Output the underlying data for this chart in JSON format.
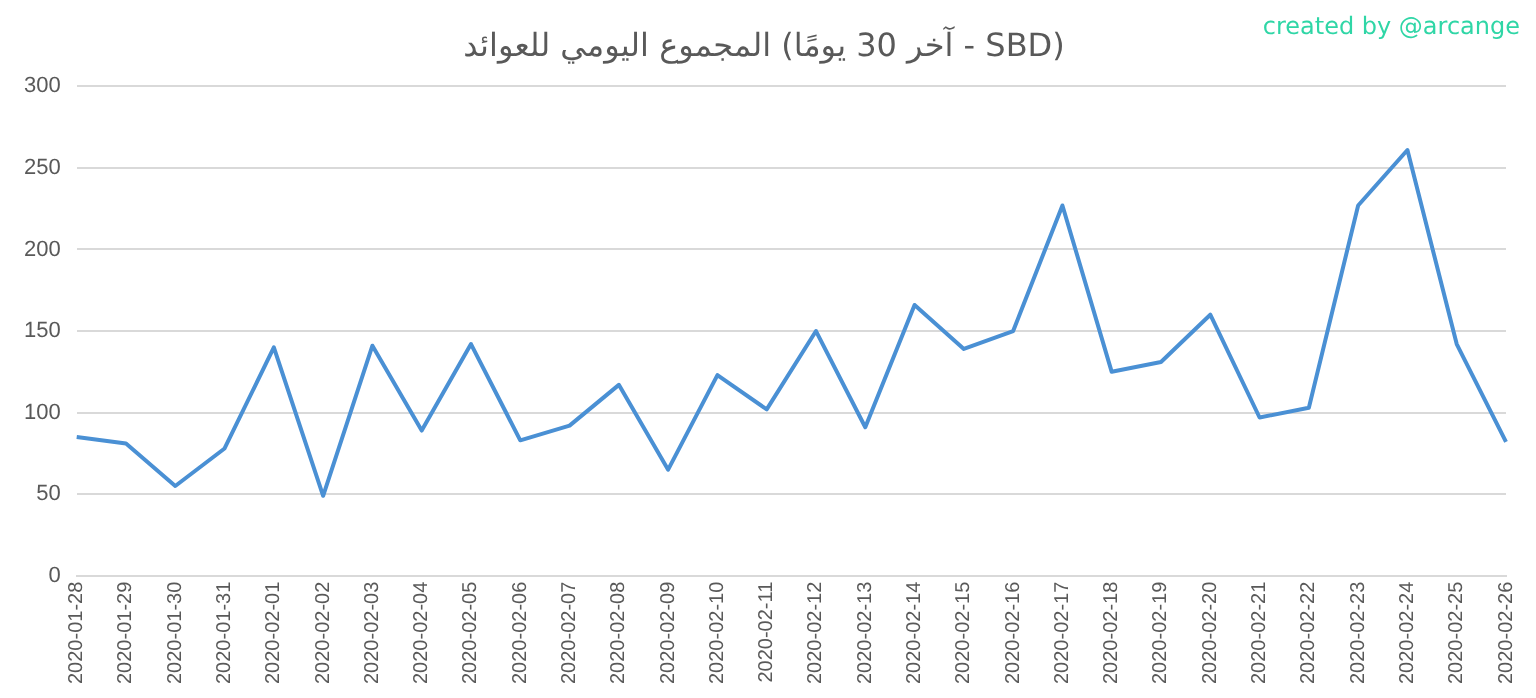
{
  "chart_data": {
    "type": "line",
    "title": "المجموع اليومي للعوائد (آخر 30 يومًا - SBD)",
    "annotations": [
      "created by @arcange"
    ],
    "categories": [
      "2020-01-28",
      "2020-01-29",
      "2020-01-30",
      "2020-01-31",
      "2020-02-01",
      "2020-02-02",
      "2020-02-03",
      "2020-02-04",
      "2020-02-05",
      "2020-02-06",
      "2020-02-07",
      "2020-02-08",
      "2020-02-09",
      "2020-02-10",
      "2020-02-11",
      "2020-02-12",
      "2020-02-13",
      "2020-02-14",
      "2020-02-15",
      "2020-02-16",
      "2020-02-17",
      "2020-02-18",
      "2020-02-19",
      "2020-02-20",
      "2020-02-21",
      "2020-02-22",
      "2020-02-23",
      "2020-02-24",
      "2020-02-25",
      "2020-02-26"
    ],
    "series": [
      {
        "color": "#4a90d4",
        "values": [
          85,
          81,
          55,
          78,
          140,
          49,
          141,
          89,
          142,
          83,
          92,
          117,
          65,
          123,
          102,
          150,
          91,
          166,
          139,
          150,
          227,
          125,
          131,
          160,
          97,
          103,
          227,
          261,
          142,
          82
        ]
      }
    ],
    "ylim": [
      0,
      300
    ],
    "yticks": [
      0,
      50,
      100,
      150,
      200,
      250,
      300
    ],
    "grid": "y",
    "legend": false,
    "marker": "none",
    "line_style": "solid"
  }
}
